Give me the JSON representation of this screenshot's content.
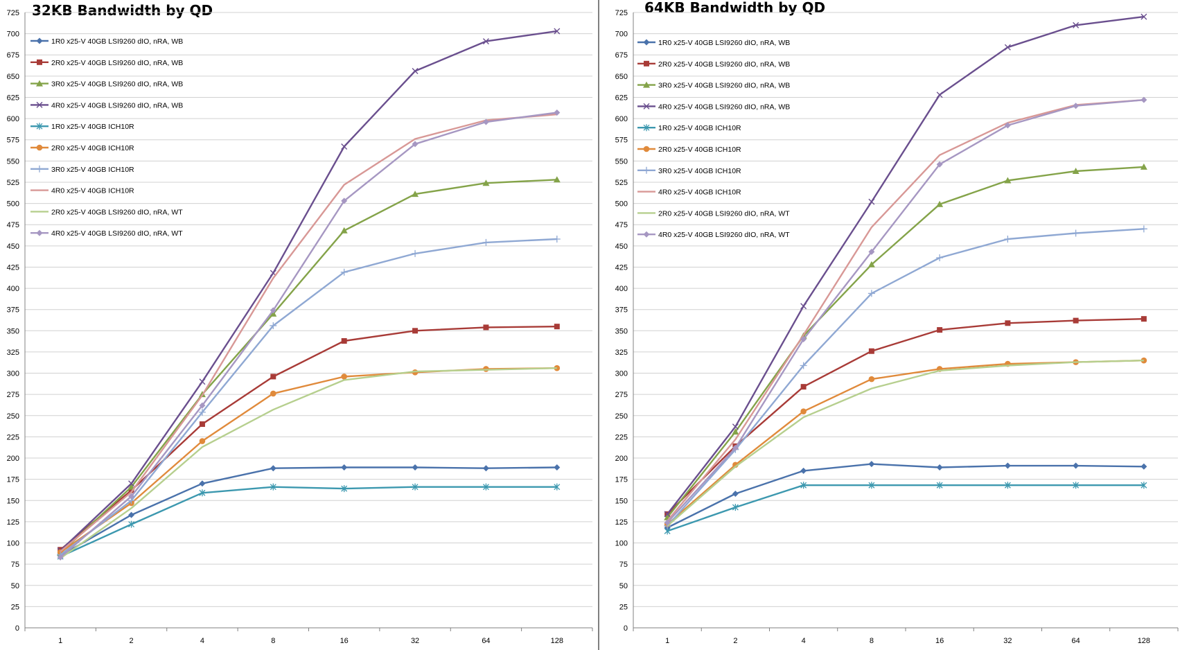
{
  "chart_data": [
    {
      "type": "line",
      "title": "32KB Bandwidth by QD",
      "x": [
        "1",
        "2",
        "4",
        "8",
        "16",
        "32",
        "64",
        "128"
      ],
      "xlabel": "",
      "ylabel": "",
      "ylim": [
        0,
        725
      ],
      "yticks": [
        "0",
        "25",
        "50",
        "75",
        "100",
        "125",
        "150",
        "175",
        "200",
        "225",
        "250",
        "275",
        "300",
        "325",
        "350",
        "375",
        "400",
        "425",
        "450",
        "475",
        "500",
        "525",
        "550",
        "575",
        "600",
        "625",
        "650",
        "675",
        "700",
        "725"
      ],
      "grid": true,
      "legend_position": "top-left",
      "series": [
        {
          "name": "1R0 x25-V 40GB LSI9260 dIO, nRA, WB",
          "color": "#4a72ab",
          "marker": "diamond",
          "values": [
            85,
            133,
            170,
            188,
            189,
            189,
            188,
            189
          ]
        },
        {
          "name": "2R0 x25-V 40GB LSI9260 dIO, nRA, WB",
          "color": "#a83b37",
          "marker": "square",
          "values": [
            92,
            162,
            240,
            296,
            338,
            350,
            354,
            355
          ]
        },
        {
          "name": "3R0 x25-V 40GB LSI9260 dIO, nRA, WB",
          "color": "#84a349",
          "marker": "triangle",
          "values": [
            88,
            166,
            275,
            370,
            468,
            511,
            524,
            528
          ]
        },
        {
          "name": "4R0 x25-V 40GB LSI9260 dIO, nRA, WB",
          "color": "#6a4f8e",
          "marker": "x",
          "values": [
            91,
            170,
            290,
            418,
            567,
            656,
            691,
            703
          ]
        },
        {
          "name": "1R0 x25-V 40GB ICH10R",
          "color": "#3c98af",
          "marker": "star",
          "values": [
            84,
            122,
            159,
            166,
            164,
            166,
            166,
            166
          ]
        },
        {
          "name": "2R0 x25-V 40GB ICH10R",
          "color": "#e08a3b",
          "marker": "circle",
          "values": [
            89,
            147,
            220,
            276,
            296,
            301,
            305,
            306
          ]
        },
        {
          "name": "3R0 x25-V 40GB ICH10R",
          "color": "#8fa8d3",
          "marker": "plus",
          "values": [
            86,
            150,
            254,
            356,
            419,
            441,
            454,
            458
          ]
        },
        {
          "name": "4R0 x25-V 40GB ICH10R",
          "color": "#d89896",
          "marker": "none",
          "values": [
            90,
            160,
            274,
            412,
            522,
            576,
            598,
            605
          ]
        },
        {
          "name": "2R0 x25-V 40GB LSI9260 dIO, nRA, WT",
          "color": "#b6cf8e",
          "marker": "none",
          "values": [
            82,
            141,
            213,
            257,
            292,
            302,
            304,
            306
          ]
        },
        {
          "name": "4R0 x25-V 40GB LSI9260 dIO, nRA, WT",
          "color": "#a697c2",
          "marker": "diamond",
          "values": [
            83,
            155,
            262,
            374,
            503,
            570,
            596,
            607
          ]
        }
      ]
    },
    {
      "type": "line",
      "title": "64KB Bandwidth by QD",
      "x": [
        "1",
        "2",
        "4",
        "8",
        "16",
        "32",
        "64",
        "128"
      ],
      "xlabel": "",
      "ylabel": "",
      "ylim": [
        0,
        725
      ],
      "yticks": [
        "0",
        "25",
        "50",
        "75",
        "100",
        "125",
        "150",
        "175",
        "200",
        "225",
        "250",
        "275",
        "300",
        "325",
        "350",
        "375",
        "400",
        "425",
        "450",
        "475",
        "500",
        "525",
        "550",
        "575",
        "600",
        "625",
        "650",
        "675",
        "700",
        "725"
      ],
      "grid": true,
      "legend_position": "top-left",
      "series": [
        {
          "name": "1R0 x25-V 40GB LSI9260 dIO, nRA, WB",
          "color": "#4a72ab",
          "marker": "diamond",
          "values": [
            118,
            158,
            185,
            193,
            189,
            191,
            191,
            190
          ]
        },
        {
          "name": "2R0 x25-V 40GB LSI9260 dIO, nRA, WB",
          "color": "#a83b37",
          "marker": "square",
          "values": [
            134,
            214,
            284,
            326,
            351,
            359,
            362,
            364
          ]
        },
        {
          "name": "3R0 x25-V 40GB LSI9260 dIO, nRA, WB",
          "color": "#84a349",
          "marker": "triangle",
          "values": [
            130,
            231,
            344,
            428,
            499,
            527,
            538,
            543
          ]
        },
        {
          "name": "4R0 x25-V 40GB LSI9260 dIO, nRA, WB",
          "color": "#6a4f8e",
          "marker": "x",
          "values": [
            134,
            237,
            379,
            502,
            628,
            684,
            710,
            720
          ]
        },
        {
          "name": "1R0 x25-V 40GB ICH10R",
          "color": "#3c98af",
          "marker": "star",
          "values": [
            114,
            142,
            168,
            168,
            168,
            168,
            168,
            168
          ]
        },
        {
          "name": "2R0 x25-V 40GB ICH10R",
          "color": "#e08a3b",
          "marker": "circle",
          "values": [
            122,
            192,
            255,
            293,
            305,
            311,
            313,
            315
          ]
        },
        {
          "name": "3R0 x25-V 40GB ICH10R",
          "color": "#8fa8d3",
          "marker": "plus",
          "values": [
            120,
            210,
            309,
            394,
            436,
            458,
            465,
            470
          ]
        },
        {
          "name": "4R0 x25-V 40GB ICH10R",
          "color": "#d89896",
          "marker": "none",
          "values": [
            126,
            222,
            345,
            472,
            557,
            595,
            616,
            622
          ]
        },
        {
          "name": "2R0 x25-V 40GB LSI9260 dIO, nRA, WT",
          "color": "#b6cf8e",
          "marker": "none",
          "values": [
            120,
            190,
            248,
            282,
            303,
            309,
            313,
            315
          ]
        },
        {
          "name": "4R0 x25-V 40GB LSI9260 dIO, nRA, WT",
          "color": "#a697c2",
          "marker": "diamond",
          "values": [
            124,
            212,
            340,
            443,
            546,
            592,
            615,
            622
          ]
        }
      ]
    }
  ]
}
